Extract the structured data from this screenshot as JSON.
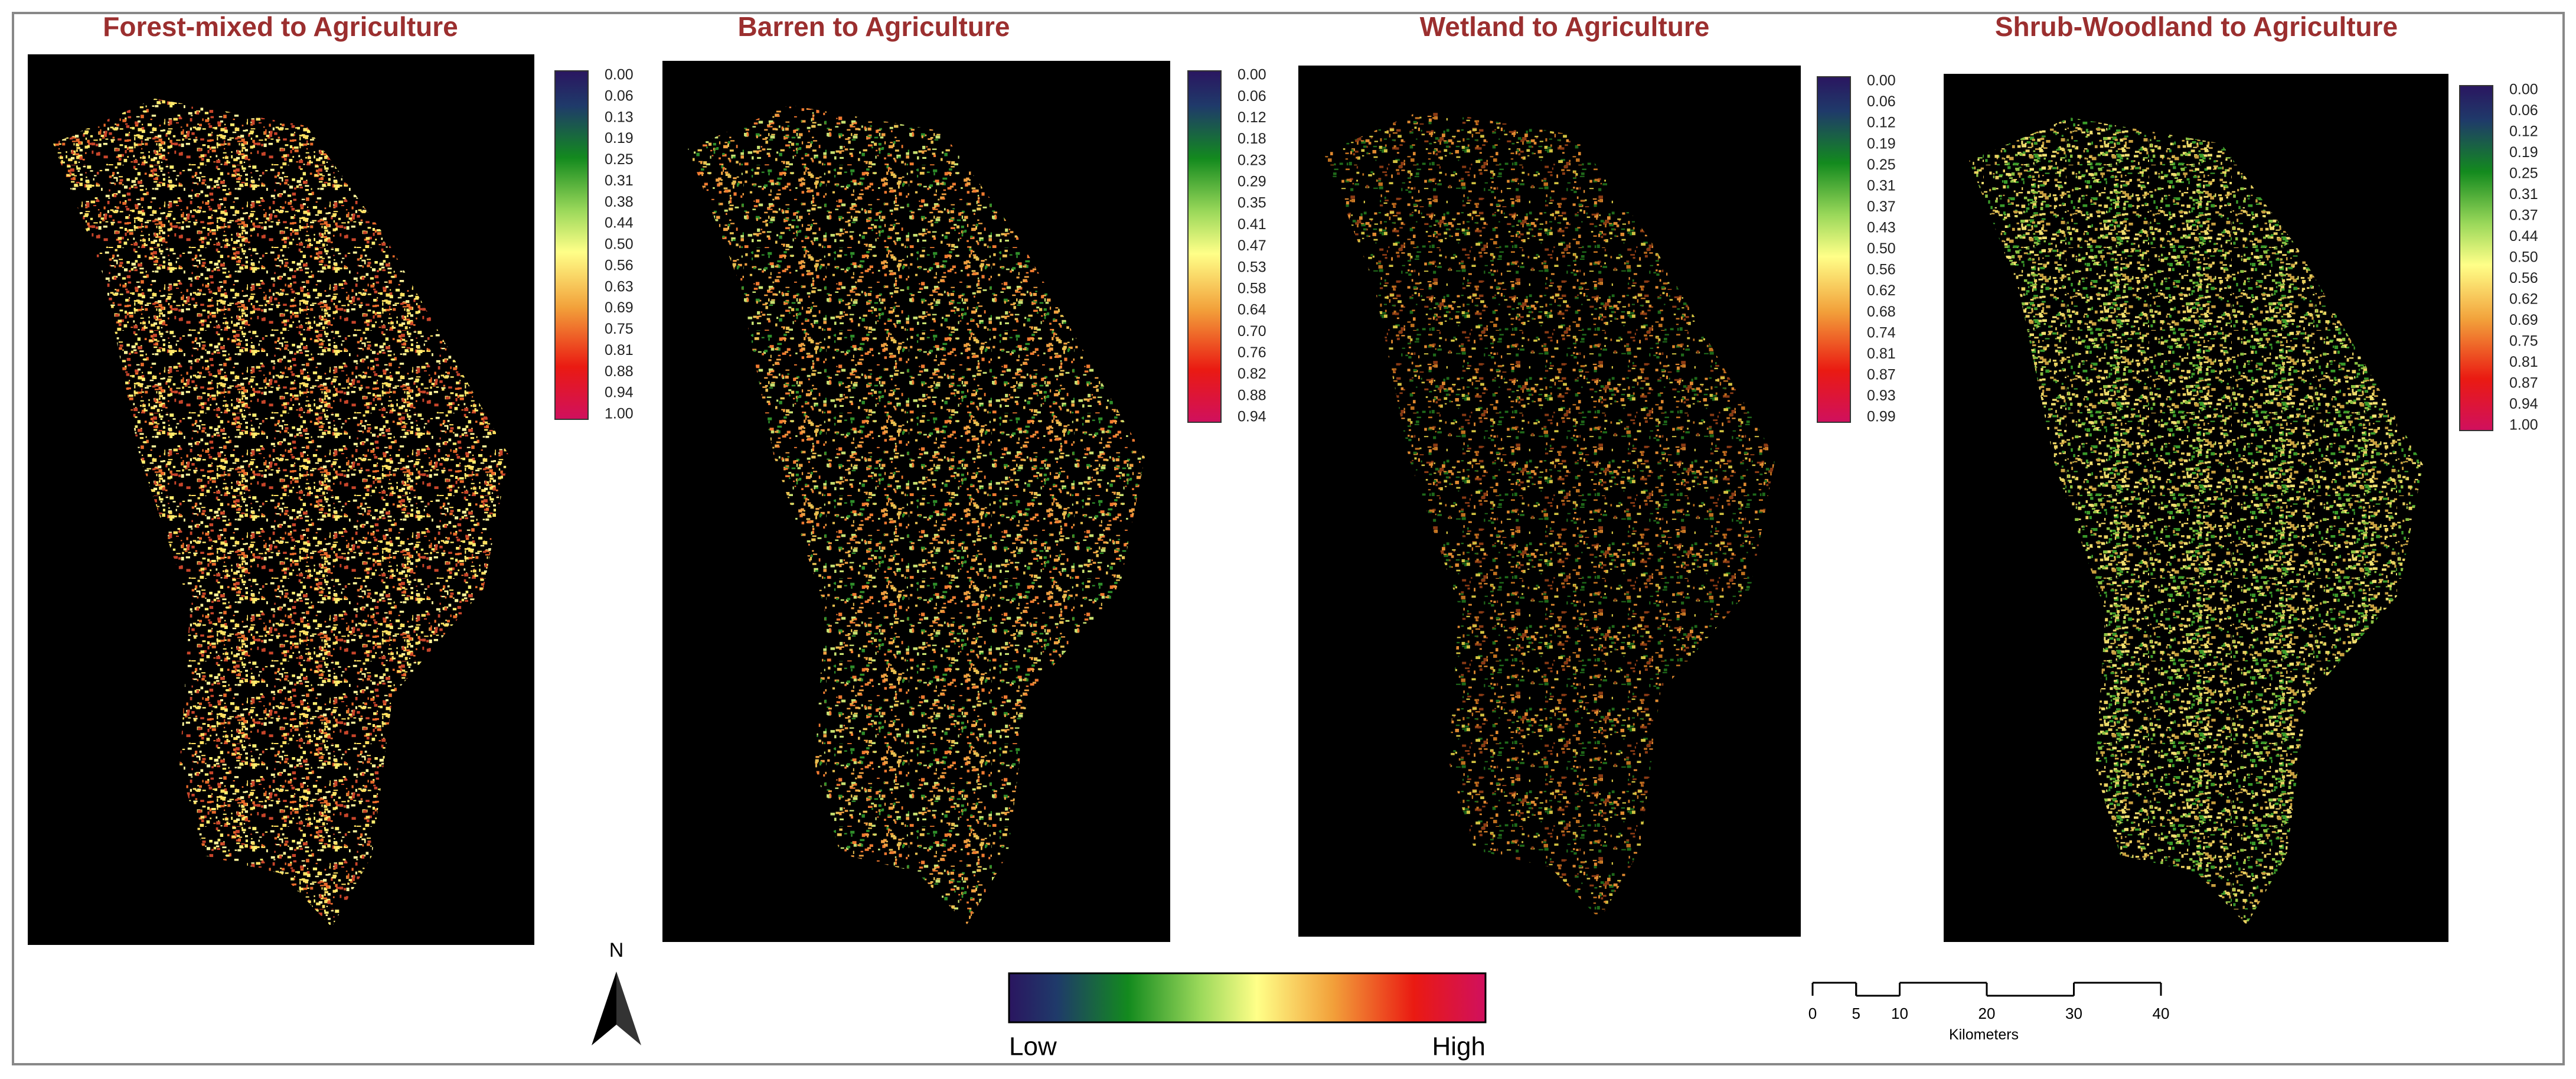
{
  "panels": [
    {
      "title": "Forest-mixed to Agriculture",
      "legend_labels": [
        "0.00",
        "0.06",
        "0.13",
        "0.19",
        "0.25",
        "0.31",
        "0.38",
        "0.44",
        "0.50",
        "0.56",
        "0.63",
        "0.69",
        "0.75",
        "0.81",
        "0.88",
        "0.94",
        "1.00"
      ]
    },
    {
      "title": "Barren to Agriculture",
      "legend_labels": [
        "0.00",
        "0.06",
        "0.12",
        "0.18",
        "0.23",
        "0.29",
        "0.35",
        "0.41",
        "0.47",
        "0.53",
        "0.58",
        "0.64",
        "0.70",
        "0.76",
        "0.82",
        "0.88",
        "0.94"
      ]
    },
    {
      "title": "Wetland to Agriculture",
      "legend_labels": [
        "0.00",
        "0.06",
        "0.12",
        "0.19",
        "0.25",
        "0.31",
        "0.37",
        "0.43",
        "0.50",
        "0.56",
        "0.62",
        "0.68",
        "0.74",
        "0.81",
        "0.87",
        "0.93",
        "0.99"
      ]
    },
    {
      "title": "Shrub-Woodland to Agriculture",
      "legend_labels": [
        "0.00",
        "0.06",
        "0.12",
        "0.19",
        "0.25",
        "0.31",
        "0.37",
        "0.44",
        "0.50",
        "0.56",
        "0.62",
        "0.69",
        "0.75",
        "0.81",
        "0.87",
        "0.94",
        "1.00"
      ]
    }
  ],
  "north_arrow": {
    "label": "N"
  },
  "color_ramp": {
    "low": "Low",
    "high": "High"
  },
  "scale_bar": {
    "ticks": [
      0,
      5,
      10,
      20,
      30,
      40
    ],
    "unit": "Kilometers"
  }
}
